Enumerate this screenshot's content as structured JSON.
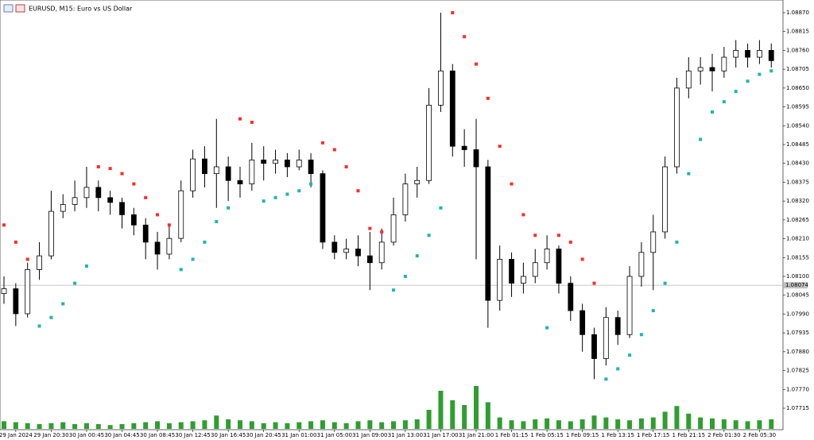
{
  "chart_data": {
    "type": "candlestick",
    "title": "EURUSD, M15:  Euro vs US Dollar",
    "categories": [
      null,
      "29 Jan 2024",
      null,
      null,
      "29 Jan 20:30",
      null,
      null,
      "30 Jan 00:45",
      null,
      null,
      "30 Jan 04:45",
      null,
      null,
      "30 Jan 08:45",
      null,
      null,
      "30 Jan 12:45",
      null,
      null,
      "30 Jan 16:45",
      null,
      null,
      "30 Jan 20:45",
      null,
      null,
      "31 Jan 01:00",
      null,
      null,
      "31 Jan 05:00",
      null,
      null,
      "31 Jan 09:00",
      null,
      null,
      "31 Jan 13:00",
      null,
      null,
      "31 Jan 17:00",
      null,
      null,
      "31 Jan 21:00",
      null,
      null,
      "1 Feb 01:15",
      null,
      null,
      "1 Feb 05:15",
      null,
      null,
      "1 Feb 09:15",
      null,
      null,
      "1 Feb 13:15",
      null,
      null,
      "1 Feb 17:15",
      null,
      null,
      "1 Feb 21:15",
      null,
      null,
      "2 Feb 01:30",
      null,
      null,
      "2 Feb 05:30",
      null
    ],
    "open": [
      1.0805,
      1.08064,
      1.07991,
      1.0812,
      1.0816,
      1.0829,
      1.0831,
      1.0833,
      1.0836,
      1.0833,
      1.08316,
      1.0828,
      1.0825,
      1.082,
      1.08165,
      1.08211,
      1.0835,
      1.08443,
      1.084,
      1.0842,
      1.0838,
      1.0837,
      1.0844,
      1.0843,
      1.0844,
      1.0842,
      1.0844,
      1.084,
      1.082,
      1.0817,
      1.0818,
      1.0816,
      1.0814,
      1.082,
      1.0828,
      1.0837,
      1.0838,
      1.086,
      1.087,
      1.0848,
      1.0847,
      1.0842,
      1.0803,
      1.0815,
      1.0808,
      1.081,
      1.0814,
      1.0818,
      1.0808,
      1.08,
      1.0793,
      1.0786,
      1.0798,
      1.0793,
      1.081,
      1.0817,
      1.0823,
      1.0842,
      1.0865,
      1.087,
      1.0871,
      1.087,
      1.0874,
      1.0876,
      1.0874,
      1.0876
    ],
    "high": [
      1.081,
      1.0808,
      1.0814,
      1.082,
      1.0835,
      1.0834,
      1.0838,
      1.0842,
      1.0838,
      1.0835,
      1.0833,
      1.083,
      1.0827,
      1.0823,
      1.0825,
      1.0838,
      1.0847,
      1.0848,
      1.0856,
      1.0845,
      1.0842,
      1.0849,
      1.0848,
      1.0847,
      1.0846,
      1.0847,
      1.0846,
      1.0841,
      1.0822,
      1.0821,
      1.0822,
      1.0823,
      1.0824,
      1.0833,
      1.084,
      1.0842,
      1.0865,
      1.0887,
      1.0872,
      1.0853,
      1.0856,
      1.0844,
      1.0819,
      1.0817,
      1.0814,
      1.0818,
      1.0822,
      1.0819,
      1.081,
      1.0802,
      1.0795,
      1.0801,
      1.08,
      1.0813,
      1.082,
      1.0828,
      1.0845,
      1.0868,
      1.0874,
      1.0874,
      1.0875,
      1.0877,
      1.0879,
      1.0878,
      1.0879,
      1.0878
    ],
    "low": [
      1.0802,
      1.07955,
      1.0798,
      1.0809,
      1.0815,
      1.0827,
      1.0829,
      1.083,
      1.0829,
      1.0828,
      1.0824,
      1.0822,
      1.0815,
      1.0812,
      1.0815,
      1.082,
      1.0833,
      1.0836,
      1.083,
      1.0832,
      1.0833,
      1.0835,
      1.0838,
      1.084,
      1.0839,
      1.0841,
      1.0836,
      1.0818,
      1.0815,
      1.0815,
      1.0813,
      1.0806,
      1.0812,
      1.0819,
      1.0826,
      1.0833,
      1.0837,
      1.0858,
      1.0845,
      1.0842,
      1.0815,
      1.0795,
      1.08,
      1.0804,
      1.0805,
      1.0808,
      1.0812,
      1.0805,
      1.0797,
      1.0788,
      1.078,
      1.0784,
      1.079,
      1.0792,
      1.0807,
      1.0806,
      1.0821,
      1.084,
      1.0862,
      1.0866,
      1.0864,
      1.0868,
      1.0871,
      1.0871,
      1.0872,
      1.0871
    ],
    "close": [
      1.08064,
      1.07991,
      1.0812,
      1.0816,
      1.0829,
      1.0831,
      1.0833,
      1.0836,
      1.0833,
      1.08316,
      1.0828,
      1.0825,
      1.082,
      1.08165,
      1.08211,
      1.0835,
      1.08443,
      1.084,
      1.0842,
      1.0838,
      1.0837,
      1.0844,
      1.0843,
      1.0844,
      1.0842,
      1.0844,
      1.084,
      1.082,
      1.0817,
      1.0818,
      1.0816,
      1.0814,
      1.082,
      1.0828,
      1.0837,
      1.0838,
      1.086,
      1.087,
      1.0848,
      1.0847,
      1.0842,
      1.0803,
      1.0815,
      1.0808,
      1.081,
      1.0814,
      1.0818,
      1.0808,
      1.08,
      1.0793,
      1.0786,
      1.0798,
      1.0793,
      1.081,
      1.0817,
      1.0823,
      1.0842,
      1.0865,
      1.087,
      1.0871,
      1.087,
      1.0874,
      1.0876,
      1.0874,
      1.0876,
      1.0873
    ],
    "psar": [
      1.0825,
      1.082,
      1.0815,
      1.07955,
      1.0798,
      1.0802,
      1.0808,
      1.0813,
      1.0842,
      1.08415,
      1.084,
      1.0837,
      1.0833,
      1.0828,
      1.0825,
      1.0812,
      1.0815,
      1.082,
      1.0826,
      1.083,
      1.0856,
      1.0855,
      1.0832,
      1.0833,
      1.0834,
      1.0835,
      1.0837,
      1.0849,
      1.0847,
      1.0842,
      1.0835,
      1.0824,
      1.0823,
      1.0806,
      1.081,
      1.0816,
      1.0822,
      1.083,
      1.0887,
      1.088,
      1.0872,
      1.0862,
      1.0848,
      1.0837,
      1.0828,
      1.0822,
      1.0795,
      1.0822,
      1.082,
      1.0815,
      1.0808,
      1.078,
      1.0783,
      1.0787,
      1.0793,
      1.08,
      1.0808,
      1.082,
      1.084,
      1.085,
      1.0858,
      1.0861,
      1.0864,
      1.0867,
      1.0869,
      1.087
    ],
    "psar_color_above": "#ff2a2a",
    "psar_color_below": "#1fb5ad",
    "volume": [
      8,
      7,
      6,
      5,
      6,
      7,
      5,
      6,
      5,
      4,
      5,
      6,
      7,
      8,
      6,
      7,
      8,
      9,
      14,
      10,
      9,
      8,
      6,
      7,
      6,
      7,
      8,
      9,
      7,
      6,
      8,
      9,
      7,
      8,
      9,
      10,
      20,
      40,
      30,
      25,
      45,
      28,
      12,
      9,
      8,
      10,
      11,
      9,
      8,
      10,
      14,
      12,
      10,
      9,
      11,
      12,
      18,
      24,
      16,
      12,
      11,
      10,
      9,
      8,
      9,
      10
    ],
    "volume_color": "#2f9e2f",
    "current_price": 1.08074,
    "ylim": [
      1.07715,
      1.0887
    ],
    "yticks": [
      {
        "value": 1.0887,
        "label": "1.08870"
      },
      1.08815,
      {
        "value": 1.0876,
        "label": "1.08760"
      },
      1.08705,
      {
        "value": 1.0865,
        "label": "1.08650"
      },
      1.08595,
      {
        "value": 1.0854,
        "label": "1.08540"
      },
      1.08485,
      {
        "value": 1.0843,
        "label": "1.08430"
      },
      1.08375,
      {
        "value": 1.0832,
        "label": "1.08320"
      },
      1.08265,
      {
        "value": 1.0821,
        "label": "1.08210"
      },
      1.08155,
      {
        "value": 1.081,
        "label": "1.08100"
      },
      1.08045,
      {
        "value": 1.0799,
        "label": "1.07990"
      },
      1.07935,
      {
        "value": 1.0788,
        "label": "1.07880"
      },
      1.07825,
      {
        "value": 1.0777,
        "label": "1.07770"
      },
      1.07715
    ]
  }
}
